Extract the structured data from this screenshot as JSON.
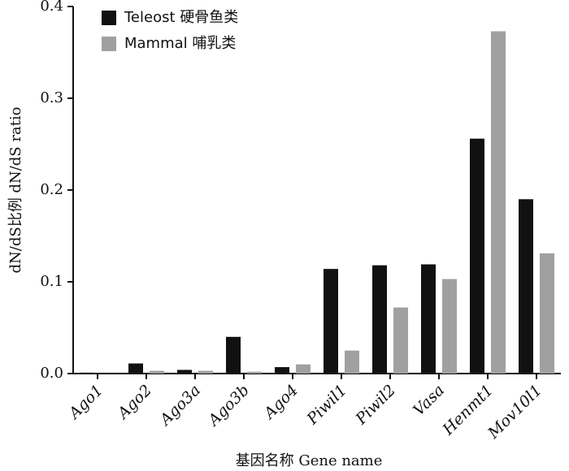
{
  "chart_data": {
    "type": "bar",
    "y_label": "dN/dS比例 dN/dS ratio",
    "x_label": "基因名称 Gene name",
    "categories": [
      "Ago1",
      "Ago2",
      "Ago3a",
      "Ago3b",
      "Ago4",
      "Piwil1",
      "Piwil2",
      "Vasa",
      "Henmt1",
      "Mov10l1"
    ],
    "series": [
      {
        "name": "Teleost 硬骨鱼类",
        "color": "#111111",
        "values": [
          0.001,
          0.011,
          0.004,
          0.04,
          0.007,
          0.114,
          0.118,
          0.119,
          0.256,
          0.19
        ]
      },
      {
        "name": "Mammal 哺乳类",
        "color": "#a0a0a0",
        "values": [
          0,
          0.003,
          0.003,
          0.002,
          0.01,
          0.025,
          0.072,
          0.103,
          0.373,
          0.131
        ]
      }
    ],
    "ylim": [
      0,
      0.4
    ],
    "yticks": [
      {
        "value": 0,
        "label": "0.0"
      },
      0.1,
      0.2,
      0.3,
      0.4
    ],
    "legend": "upper left"
  }
}
